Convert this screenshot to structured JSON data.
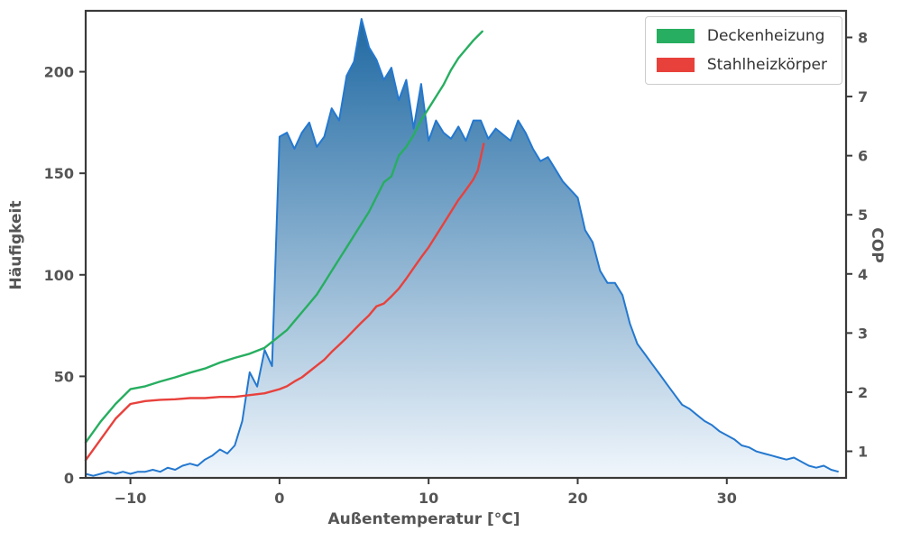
{
  "chart_data": {
    "type": "area",
    "title": "",
    "xlabel": "Außentemperatur [°C]",
    "ylabel_left": "Häufigkeit",
    "ylabel_right": "COP",
    "xlim": [
      -13,
      38
    ],
    "ylim_left": [
      0,
      230
    ],
    "ylim_right": [
      0.55,
      8.45
    ],
    "xticks": [
      -10,
      0,
      10,
      20,
      30
    ],
    "xtick_labels": [
      "−10",
      "0",
      "10",
      "20",
      "30"
    ],
    "yticks_left": [
      0,
      50,
      100,
      150,
      200
    ],
    "ytick_labels_left": [
      "0",
      "50",
      "100",
      "150",
      "200"
    ],
    "yticks_right": [
      1,
      2,
      3,
      4,
      5,
      6,
      7,
      8
    ],
    "ytick_labels_right": [
      "1",
      "2",
      "3",
      "4",
      "5",
      "6",
      "7",
      "8"
    ],
    "grid": false,
    "spine_color": "#3a3a3a",
    "tick_color": "#555555",
    "legend": {
      "position": "upper right",
      "entries": [
        {
          "label": "Deckenheizung",
          "color": "#27ae60"
        },
        {
          "label": "Stahlheizkörper",
          "color": "#e8413c"
        }
      ]
    },
    "series": [
      {
        "name": "Häufigkeit",
        "type": "area",
        "axis": "left",
        "color": "#2478cf",
        "fill_gradient_top": "#15629e",
        "fill_gradient_bottom": "#f0f6fc",
        "x_start": -13,
        "x_step": 0.5,
        "values": [
          2,
          1,
          2,
          3,
          2,
          3,
          2,
          3,
          3,
          4,
          3,
          5,
          4,
          6,
          7,
          6,
          9,
          11,
          14,
          12,
          16,
          28,
          52,
          45,
          63,
          55,
          168,
          170,
          162,
          170,
          175,
          163,
          168,
          182,
          176,
          198,
          205,
          226,
          212,
          206,
          196,
          202,
          186,
          196,
          172,
          194,
          166,
          176,
          170,
          167,
          173,
          166,
          176,
          176,
          167,
          172,
          169,
          166,
          176,
          170,
          162,
          156,
          158,
          152,
          146,
          142,
          138,
          122,
          116,
          102,
          96,
          96,
          90,
          76,
          66,
          61,
          56,
          51,
          46,
          41,
          36,
          34,
          31,
          28,
          26,
          23,
          21,
          19,
          16,
          15,
          13,
          12,
          11,
          10,
          9,
          10,
          8,
          6,
          5,
          6,
          4,
          3
        ]
      },
      {
        "name": "Deckenheizung",
        "type": "line",
        "axis": "right",
        "color": "#27ae60",
        "points": [
          [
            -13,
            1.15
          ],
          [
            -12,
            1.5
          ],
          [
            -11,
            1.8
          ],
          [
            -10,
            2.05
          ],
          [
            -9,
            2.1
          ],
          [
            -8,
            2.18
          ],
          [
            -7,
            2.25
          ],
          [
            -6,
            2.33
          ],
          [
            -5,
            2.4
          ],
          [
            -4,
            2.5
          ],
          [
            -3,
            2.58
          ],
          [
            -2,
            2.65
          ],
          [
            -1,
            2.75
          ],
          [
            0,
            2.95
          ],
          [
            0.5,
            3.05
          ],
          [
            1,
            3.2
          ],
          [
            1.5,
            3.35
          ],
          [
            2,
            3.5
          ],
          [
            2.5,
            3.65
          ],
          [
            3,
            3.85
          ],
          [
            3.5,
            4.05
          ],
          [
            4,
            4.25
          ],
          [
            4.5,
            4.45
          ],
          [
            5,
            4.65
          ],
          [
            5.5,
            4.85
          ],
          [
            6,
            5.05
          ],
          [
            6.5,
            5.3
          ],
          [
            7,
            5.55
          ],
          [
            7.5,
            5.65
          ],
          [
            8,
            6.0
          ],
          [
            8.5,
            6.15
          ],
          [
            9,
            6.35
          ],
          [
            9.5,
            6.6
          ],
          [
            10,
            6.8
          ],
          [
            10.5,
            7.0
          ],
          [
            11,
            7.2
          ],
          [
            11.5,
            7.45
          ],
          [
            12,
            7.65
          ],
          [
            12.5,
            7.8
          ],
          [
            13,
            7.95
          ],
          [
            13.6,
            8.1
          ]
        ]
      },
      {
        "name": "Stahlheizkörper",
        "type": "line",
        "axis": "right",
        "color": "#e8413c",
        "points": [
          [
            -13,
            0.85
          ],
          [
            -12,
            1.2
          ],
          [
            -11,
            1.55
          ],
          [
            -10,
            1.8
          ],
          [
            -9,
            1.85
          ],
          [
            -8,
            1.87
          ],
          [
            -7,
            1.88
          ],
          [
            -6,
            1.9
          ],
          [
            -5,
            1.9
          ],
          [
            -4,
            1.92
          ],
          [
            -3,
            1.92
          ],
          [
            -2,
            1.95
          ],
          [
            -1,
            1.98
          ],
          [
            0,
            2.05
          ],
          [
            0.5,
            2.1
          ],
          [
            1,
            2.18
          ],
          [
            1.5,
            2.25
          ],
          [
            2,
            2.35
          ],
          [
            2.5,
            2.45
          ],
          [
            3,
            2.55
          ],
          [
            3.5,
            2.68
          ],
          [
            4,
            2.8
          ],
          [
            4.5,
            2.92
          ],
          [
            5,
            3.05
          ],
          [
            5.5,
            3.18
          ],
          [
            6,
            3.3
          ],
          [
            6.5,
            3.45
          ],
          [
            7,
            3.5
          ],
          [
            7.5,
            3.62
          ],
          [
            8,
            3.75
          ],
          [
            8.5,
            3.92
          ],
          [
            9,
            4.1
          ],
          [
            9.5,
            4.28
          ],
          [
            10,
            4.45
          ],
          [
            10.5,
            4.65
          ],
          [
            11,
            4.85
          ],
          [
            11.5,
            5.05
          ],
          [
            12,
            5.25
          ],
          [
            12.5,
            5.42
          ],
          [
            13,
            5.6
          ],
          [
            13.3,
            5.75
          ],
          [
            13.7,
            6.2
          ]
        ]
      }
    ]
  }
}
